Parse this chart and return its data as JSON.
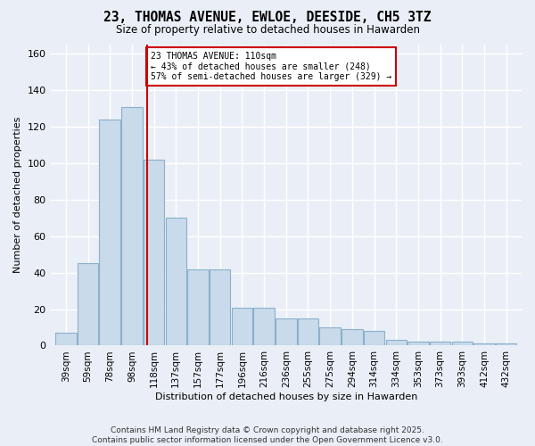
{
  "title": "23, THOMAS AVENUE, EWLOE, DEESIDE, CH5 3TZ",
  "subtitle": "Size of property relative to detached houses in Hawarden",
  "xlabel": "Distribution of detached houses by size in Hawarden",
  "ylabel": "Number of detached properties",
  "categories": [
    "39sqm",
    "59sqm",
    "78sqm",
    "98sqm",
    "118sqm",
    "137sqm",
    "157sqm",
    "177sqm",
    "196sqm",
    "216sqm",
    "236sqm",
    "255sqm",
    "275sqm",
    "294sqm",
    "314sqm",
    "334sqm",
    "353sqm",
    "373sqm",
    "393sqm",
    "412sqm",
    "432sqm"
  ],
  "bar_heights": [
    7,
    45,
    124,
    131,
    102,
    70,
    42,
    42,
    21,
    21,
    15,
    15,
    10,
    9,
    8,
    3,
    2,
    2,
    2,
    1,
    1
  ],
  "bar_color": "#c9daea",
  "bar_edge_color": "#8ab0cc",
  "vline_index": 3.7,
  "vline_color": "#cc0000",
  "annotation_text": "23 THOMAS AVENUE: 110sqm\n← 43% of detached houses are smaller (248)\n57% of semi-detached houses are larger (329) →",
  "annotation_box_color": "#ffffff",
  "annotation_box_edge": "#cc0000",
  "ylim": [
    0,
    165
  ],
  "yticks": [
    0,
    20,
    40,
    60,
    80,
    100,
    120,
    140,
    160
  ],
  "bg_color": "#eaeff7",
  "grid_color": "#ffffff",
  "footer_line1": "Contains HM Land Registry data © Crown copyright and database right 2025.",
  "footer_line2": "Contains public sector information licensed under the Open Government Licence v3.0."
}
